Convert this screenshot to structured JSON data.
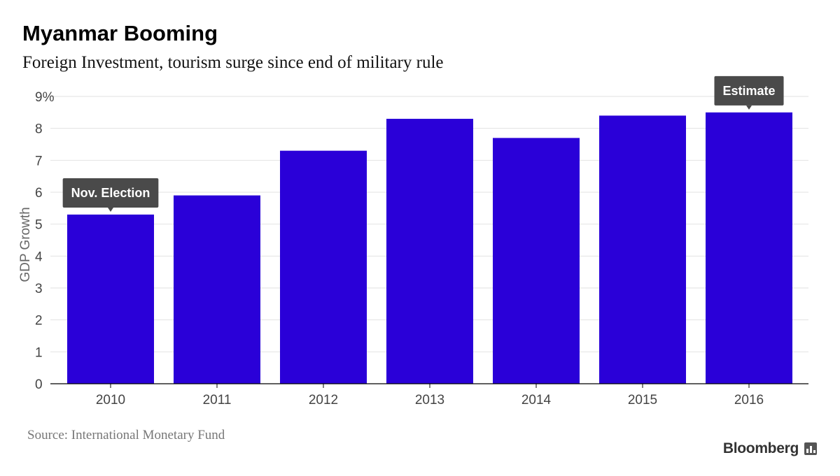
{
  "chart_data": {
    "type": "bar",
    "title": "Myanmar Booming",
    "subtitle": "Foreign Investment, tourism surge since end of military rule",
    "ylabel": "GDP Growth",
    "xlabel": "",
    "categories": [
      "2010",
      "2011",
      "2012",
      "2013",
      "2014",
      "2015",
      "2016"
    ],
    "values": [
      5.3,
      5.9,
      7.3,
      8.3,
      7.7,
      8.4,
      8.5
    ],
    "ylim": [
      0,
      9
    ],
    "yticks": [
      "0",
      "1",
      "2",
      "3",
      "4",
      "5",
      "6",
      "7",
      "8",
      "9%"
    ],
    "grid": true,
    "bar_color": "#2a00d8",
    "annotations": [
      {
        "category": "2010",
        "text": "Nov. Election"
      },
      {
        "category": "2016",
        "text": "Estimate"
      }
    ]
  },
  "footer": {
    "source": "Source: International Monetary Fund",
    "brand": "Bloomberg"
  }
}
